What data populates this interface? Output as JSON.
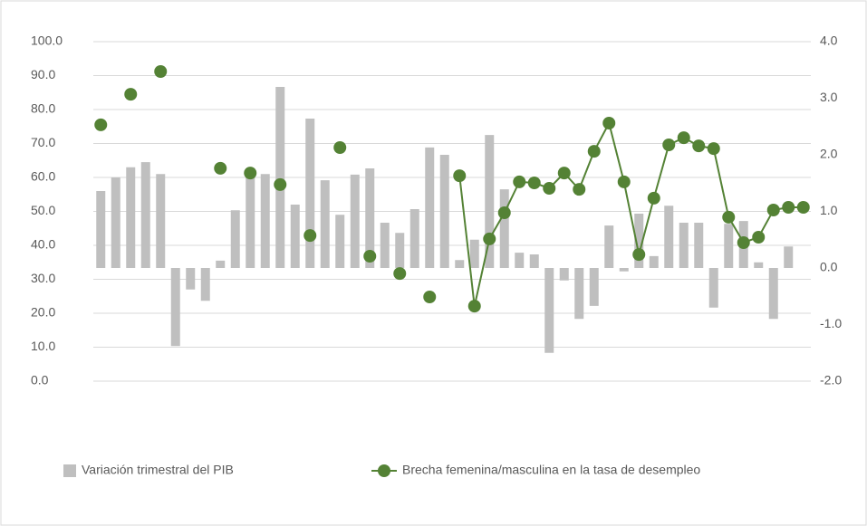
{
  "chart_data": {
    "type": "bar-line",
    "categories": [
      null,
      null,
      null,
      null,
      null,
      null,
      null,
      null,
      null,
      null,
      null,
      null,
      null,
      null,
      null,
      null,
      null,
      null,
      null,
      null,
      null,
      null,
      null,
      null,
      null,
      null,
      null,
      null,
      null,
      null,
      null,
      null,
      null,
      null,
      null,
      null,
      null,
      null,
      null,
      null,
      null,
      null,
      null,
      null,
      null,
      null,
      null,
      null
    ],
    "series": [
      {
        "name": "Variación trimestral del PIB",
        "type": "bar",
        "axis": "y2",
        "color": "#bfbfbf",
        "values": [
          1.36,
          1.6,
          1.78,
          1.87,
          1.66,
          -1.38,
          -0.38,
          -0.58,
          0.13,
          1.02,
          1.6,
          1.66,
          3.2,
          1.12,
          2.64,
          1.55,
          0.94,
          1.65,
          1.76,
          0.8,
          0.62,
          1.04,
          2.13,
          2.0,
          0.14,
          0.5,
          2.35,
          1.39,
          0.27,
          0.24,
          -1.5,
          -0.22,
          -0.9,
          -0.67,
          0.75,
          -0.06,
          0.96,
          0.21,
          1.1,
          0.8,
          0.8,
          -0.7,
          0.78,
          0.83,
          0.1,
          -0.9,
          0.38,
          null
        ]
      },
      {
        "name": "Brecha femenina/masculina en la tasa de desempleo",
        "type": "line",
        "axis": "y",
        "color": "#548235",
        "values": [
          75.5,
          null,
          84.5,
          null,
          91.2,
          null,
          null,
          null,
          62.7,
          null,
          61.3,
          null,
          57.9,
          null,
          42.9,
          null,
          68.8,
          null,
          36.8,
          null,
          31.7,
          null,
          24.8,
          null,
          60.5,
          22.1,
          41.9,
          49.6,
          58.7,
          58.4,
          56.8,
          61.3,
          56.5,
          67.7,
          76.0,
          58.7,
          37.3,
          53.9,
          69.6,
          71.7,
          69.3,
          68.5,
          48.3,
          40.8,
          42.4,
          50.4,
          51.2,
          51.2
        ]
      }
    ],
    "ylim": [
      0,
      100
    ],
    "yticks": [
      {
        "value": 0,
        "label": "0.0"
      },
      {
        "value": 10,
        "label": "10.0"
      },
      {
        "value": 20,
        "label": "20.0"
      },
      {
        "value": 30,
        "label": "30.0"
      },
      {
        "value": 40,
        "label": "40.0"
      },
      {
        "value": 50,
        "label": "50.0"
      },
      {
        "value": 60,
        "label": "60.0"
      },
      {
        "value": 70,
        "label": "70.0"
      },
      {
        "value": 80,
        "label": "80.0"
      },
      {
        "value": 90,
        "label": "90.0"
      },
      {
        "value": 100,
        "label": "100.0"
      }
    ],
    "y2lim": [
      -2,
      4
    ],
    "y2ticks": [
      {
        "value": -2,
        "label": "-2.0"
      },
      {
        "value": -1,
        "label": "-1.0"
      },
      {
        "value": 0,
        "label": "0.0"
      },
      {
        "value": 1,
        "label": "1.0"
      },
      {
        "value": 2,
        "label": "2.0"
      },
      {
        "value": 3,
        "label": "3.0"
      },
      {
        "value": 4,
        "label": "4.0"
      }
    ],
    "grid": true,
    "legend": "bottom"
  }
}
